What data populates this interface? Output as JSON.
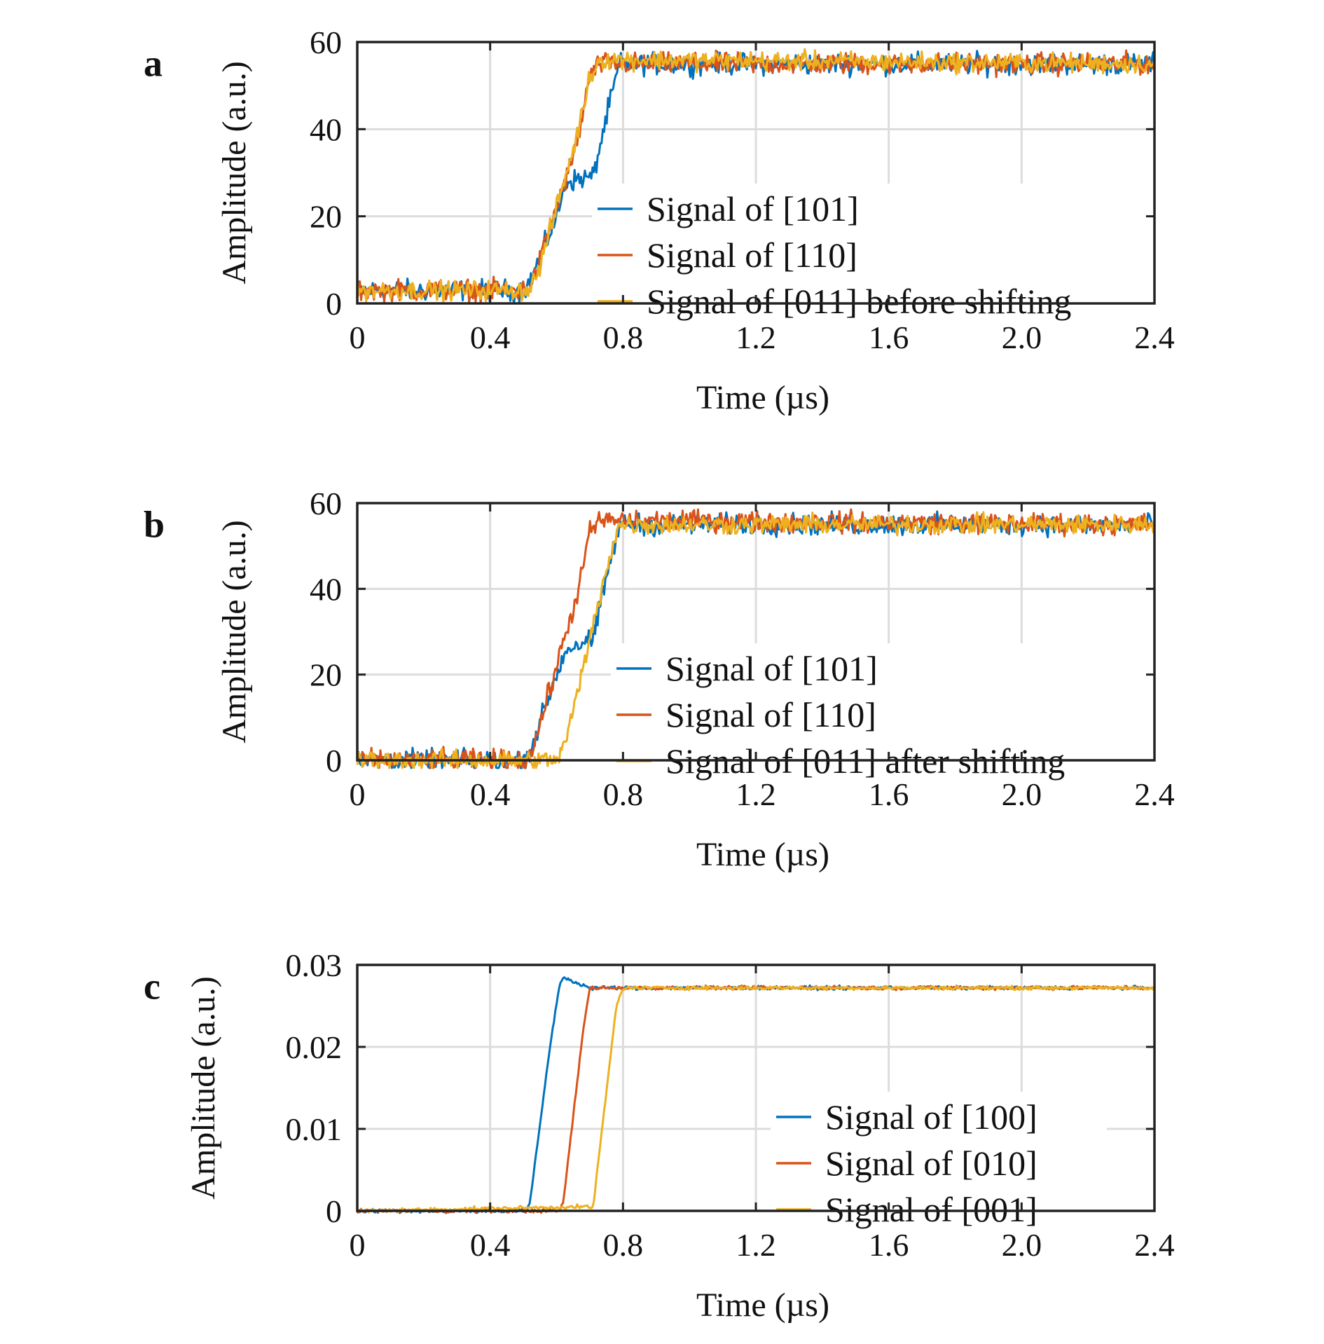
{
  "chart_data": [
    {
      "type": "line",
      "panel": "a",
      "xlabel": "Time (µs)",
      "ylabel": "Amplitude (a.u.)",
      "xlim": [
        0,
        2.4
      ],
      "ylim": [
        0,
        60
      ],
      "xticks": [
        "0",
        "0.4",
        "0.8",
        "1.2",
        "1.6",
        "2.0",
        "2.4"
      ],
      "yticks": [
        "0",
        "20",
        "40",
        "60"
      ],
      "grid": true,
      "legend_position": "center",
      "series": [
        {
          "name": "Signal of  [101]",
          "color": "#0072BD",
          "noise": 2.2,
          "points": [
            [
              0,
              3
            ],
            [
              0.5,
              3
            ],
            [
              0.52,
              5
            ],
            [
              0.6,
              20
            ],
            [
              0.63,
              28
            ],
            [
              0.7,
              29
            ],
            [
              0.71,
              29
            ],
            [
              0.76,
              46
            ],
            [
              0.79,
              55
            ],
            [
              2.4,
              55
            ]
          ]
        },
        {
          "name": "Signal of  [110]",
          "color": "#D95319",
          "noise": 2.2,
          "points": [
            [
              0,
              3
            ],
            [
              0.5,
              3
            ],
            [
              0.53,
              5
            ],
            [
              0.6,
              22
            ],
            [
              0.66,
              36
            ],
            [
              0.7,
              52
            ],
            [
              0.73,
              55
            ],
            [
              2.4,
              55
            ]
          ]
        },
        {
          "name": "Signal of  [011] before shifting",
          "color": "#EDB120",
          "noise": 2.0,
          "points": [
            [
              0,
              3
            ],
            [
              0.51,
              3
            ],
            [
              0.54,
              6
            ],
            [
              0.6,
              22
            ],
            [
              0.66,
              38
            ],
            [
              0.7,
              52
            ],
            [
              0.73,
              56
            ],
            [
              2.4,
              55
            ]
          ]
        }
      ]
    },
    {
      "type": "line",
      "panel": "b",
      "xlabel": "Time (µs)",
      "ylabel": "Amplitude (a.u.)",
      "xlim": [
        0,
        2.4
      ],
      "ylim": [
        0,
        60
      ],
      "xticks": [
        "0",
        "0.4",
        "0.8",
        "1.2",
        "1.6",
        "2.0",
        "2.4"
      ],
      "yticks": [
        "0",
        "20",
        "40",
        "60"
      ],
      "grid": true,
      "legend_position": "center",
      "series": [
        {
          "name": "Signal of  [101]",
          "color": "#0072BD",
          "noise": 2.2,
          "points": [
            [
              0,
              0
            ],
            [
              0.5,
              0
            ],
            [
              0.52,
              2
            ],
            [
              0.6,
              20
            ],
            [
              0.63,
              26
            ],
            [
              0.7,
              28
            ],
            [
              0.71,
              28
            ],
            [
              0.76,
              46
            ],
            [
              0.79,
              55
            ],
            [
              2.4,
              55
            ]
          ]
        },
        {
          "name": "Signal of  [110]",
          "color": "#D95319",
          "noise": 2.2,
          "points": [
            [
              0,
              0
            ],
            [
              0.51,
              0
            ],
            [
              0.53,
              3
            ],
            [
              0.6,
              22
            ],
            [
              0.66,
              38
            ],
            [
              0.7,
              53
            ],
            [
              0.73,
              56
            ],
            [
              2.4,
              55
            ]
          ]
        },
        {
          "name": "Signal of  [011] after shifting",
          "color": "#EDB120",
          "noise": 2.0,
          "points": [
            [
              0,
              0
            ],
            [
              0.6,
              0
            ],
            [
              0.63,
              5
            ],
            [
              0.7,
              28
            ],
            [
              0.75,
              45
            ],
            [
              0.79,
              55
            ],
            [
              2.4,
              55
            ]
          ]
        }
      ]
    },
    {
      "type": "line",
      "panel": "c",
      "xlabel": "Time (µs)",
      "ylabel": "Amplitude (a.u.)",
      "xlim": [
        0,
        2.4
      ],
      "ylim": [
        0,
        0.03
      ],
      "xticks": [
        "0",
        "0.4",
        "0.8",
        "1.2",
        "1.6",
        "2.0",
        "2.4"
      ],
      "yticks": [
        "0",
        "0.01",
        "0.02",
        "0.03"
      ],
      "grid": true,
      "legend_position": "right",
      "series": [
        {
          "name": "Signal of  [100]",
          "color": "#0072BD",
          "noise": 0.0002,
          "points": [
            [
              0,
              0
            ],
            [
              0.51,
              0
            ],
            [
              0.52,
              0.001
            ],
            [
              0.58,
              0.02
            ],
            [
              0.61,
              0.0278
            ],
            [
              0.62,
              0.0285
            ],
            [
              0.66,
              0.0278
            ],
            [
              0.7,
              0.0272
            ],
            [
              2.4,
              0.0272
            ]
          ]
        },
        {
          "name": "Signal of  [010]",
          "color": "#D95319",
          "noise": 0.0002,
          "points": [
            [
              0,
              0
            ],
            [
              0.61,
              0
            ],
            [
              0.62,
              0.001
            ],
            [
              0.68,
              0.022
            ],
            [
              0.7,
              0.0272
            ],
            [
              2.4,
              0.0272
            ]
          ]
        },
        {
          "name": "Signal of  [001]",
          "color": "#EDB120",
          "noise": 0.0002,
          "points": [
            [
              0,
              0
            ],
            [
              0.69,
              0.0005
            ],
            [
              0.71,
              0.0004
            ],
            [
              0.72,
              0.004
            ],
            [
              0.78,
              0.025
            ],
            [
              0.8,
              0.0272
            ],
            [
              2.4,
              0.0272
            ]
          ]
        }
      ]
    }
  ]
}
